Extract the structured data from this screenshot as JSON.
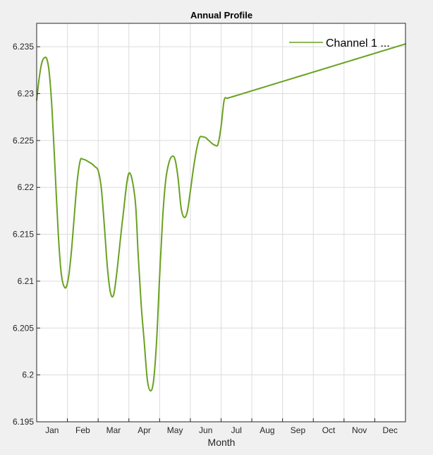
{
  "chart_data": {
    "type": "line",
    "title": "Annual Profile",
    "xlabel": "Month",
    "ylabel": "",
    "ylim": [
      6.195,
      6.2375
    ],
    "xlim": [
      0.5,
      12.5
    ],
    "yticks": [
      6.195,
      6.2,
      6.205,
      6.21,
      6.215,
      6.22,
      6.225,
      6.23,
      6.235
    ],
    "ytick_labels": [
      "6.195",
      "6.2",
      "6.205",
      "6.21",
      "6.215",
      "6.22",
      "6.225",
      "6.23",
      "6.235"
    ],
    "categories": [
      "Jan",
      "Feb",
      "Mar",
      "Apr",
      "May",
      "Jun",
      "Jul",
      "Aug",
      "Sep",
      "Oct",
      "Nov",
      "Dec"
    ],
    "grid": true,
    "legend_position": "top-right",
    "series": [
      {
        "name": "Channel 1 ...",
        "color": "#6aa121",
        "x": [
          0.5,
          0.58,
          0.66,
          0.74,
          0.83,
          0.91,
          1.0,
          1.1,
          1.2,
          1.3,
          1.42,
          1.52,
          1.62,
          1.72,
          1.82,
          1.92,
          2.0,
          2.1,
          2.2,
          2.3,
          2.4,
          2.5,
          2.6,
          2.7,
          2.8,
          2.9,
          3.0,
          3.1,
          3.3,
          3.5,
          3.7,
          3.8,
          3.9,
          4.0,
          4.1,
          4.2,
          4.3,
          4.4,
          4.5,
          4.6,
          4.7,
          4.8,
          4.9,
          5.0,
          5.1,
          5.2,
          5.3,
          5.4,
          5.5,
          5.6,
          5.7,
          5.8,
          5.9,
          6.0,
          6.1,
          6.2,
          6.3,
          6.4,
          6.5,
          6.6,
          6.7,
          6.8,
          6.9,
          7.0,
          7.1,
          7.2,
          7.3,
          7.4,
          7.5,
          7.6,
          7.8,
          8.0,
          8.2,
          8.4,
          8.6,
          8.8,
          9.0,
          9.2,
          9.4,
          9.6,
          9.8,
          10.0,
          10.2,
          10.4,
          10.6,
          10.8,
          11.0,
          11.2,
          11.4,
          11.6,
          11.8,
          12.0,
          12.1,
          12.2,
          12.3,
          12.4,
          12.5
        ],
        "y": [
          6.2293,
          6.2316,
          6.2332,
          6.2338,
          6.2337,
          6.2322,
          6.2283,
          6.2218,
          6.2152,
          6.2108,
          6.2093,
          6.2101,
          6.2128,
          6.2168,
          6.2207,
          6.2229,
          6.223,
          6.2229,
          6.2227,
          6.2225,
          6.2222,
          6.2218,
          6.22,
          6.216,
          6.2115,
          6.2088,
          6.2085,
          6.2107,
          6.2167,
          6.2215,
          6.2188,
          6.213,
          6.2075,
          6.2035,
          6.1995,
          6.1983,
          6.1993,
          6.2035,
          6.2105,
          6.2168,
          6.2208,
          6.2226,
          6.2233,
          6.223,
          6.221,
          6.2178,
          6.2168,
          6.2174,
          6.2196,
          6.222,
          6.224,
          6.2253,
          6.2254,
          6.2253,
          6.225,
          6.2247,
          6.2245,
          6.2246,
          6.2265,
          6.2293,
          6.2295,
          6.2296,
          6.2297,
          6.2298,
          6.2299,
          6.23,
          6.2301,
          6.2302,
          6.2303,
          6.2304,
          6.2306,
          6.2308,
          6.231,
          6.2312,
          6.2314,
          6.2316,
          6.2318,
          6.232,
          6.2322,
          6.2324,
          6.2326,
          6.2328,
          6.233,
          6.2332,
          6.2334,
          6.2336,
          6.2338,
          6.234,
          6.2342,
          6.2344,
          6.2346,
          6.2348,
          6.2349,
          6.235,
          6.2351,
          6.2352,
          6.2353
        ]
      }
    ]
  }
}
